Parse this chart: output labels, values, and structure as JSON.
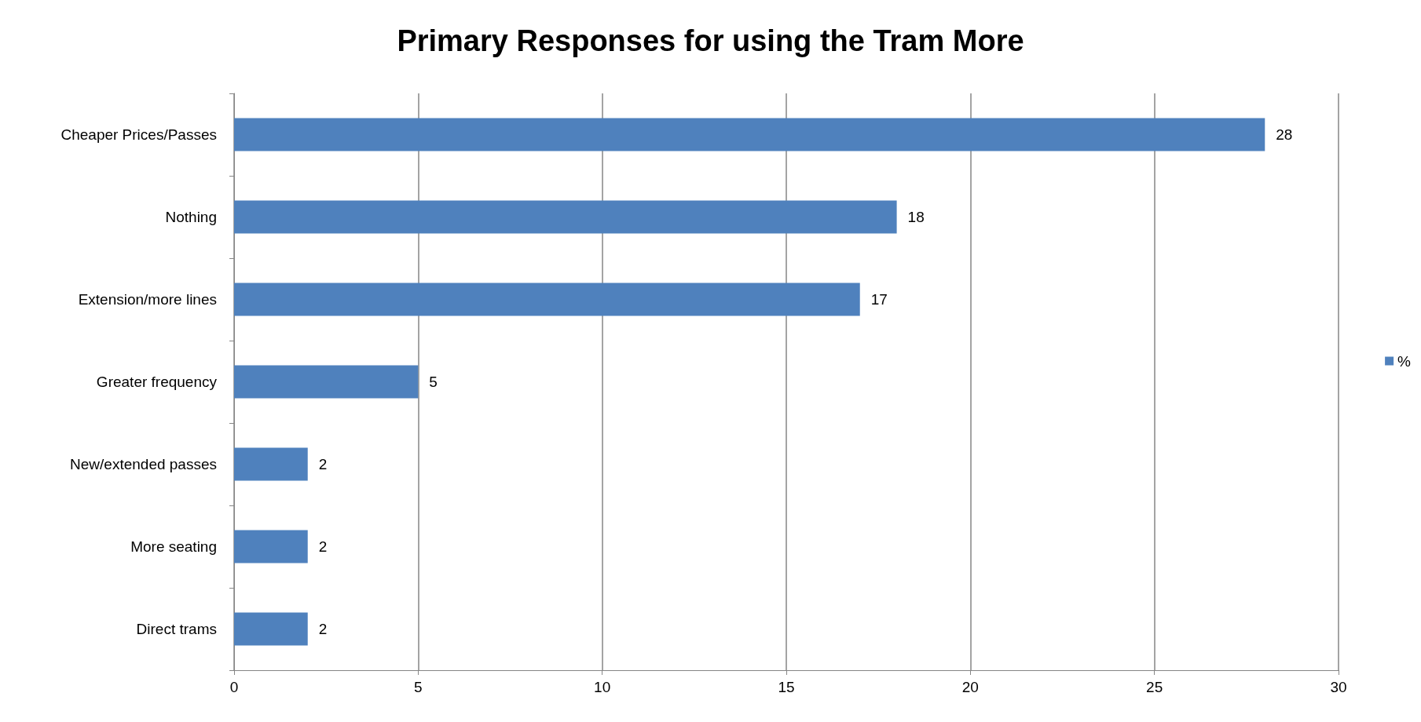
{
  "chart_data": {
    "type": "bar",
    "orientation": "horizontal",
    "title": "Primary Responses for using the Tram More",
    "categories": [
      "Cheaper Prices/Passes",
      "Nothing",
      "Extension/more lines",
      "Greater frequency",
      "New/extended passes",
      "More seating",
      "Direct trams"
    ],
    "series": [
      {
        "name": "%",
        "color": "#4f81bd",
        "values": [
          28,
          18,
          17,
          5,
          2,
          2,
          2
        ]
      }
    ],
    "xlim": [
      0,
      30
    ],
    "xticks": [
      0,
      5,
      10,
      15,
      20,
      25,
      30
    ],
    "grid": "x",
    "legend": "right",
    "data_labels": true
  }
}
